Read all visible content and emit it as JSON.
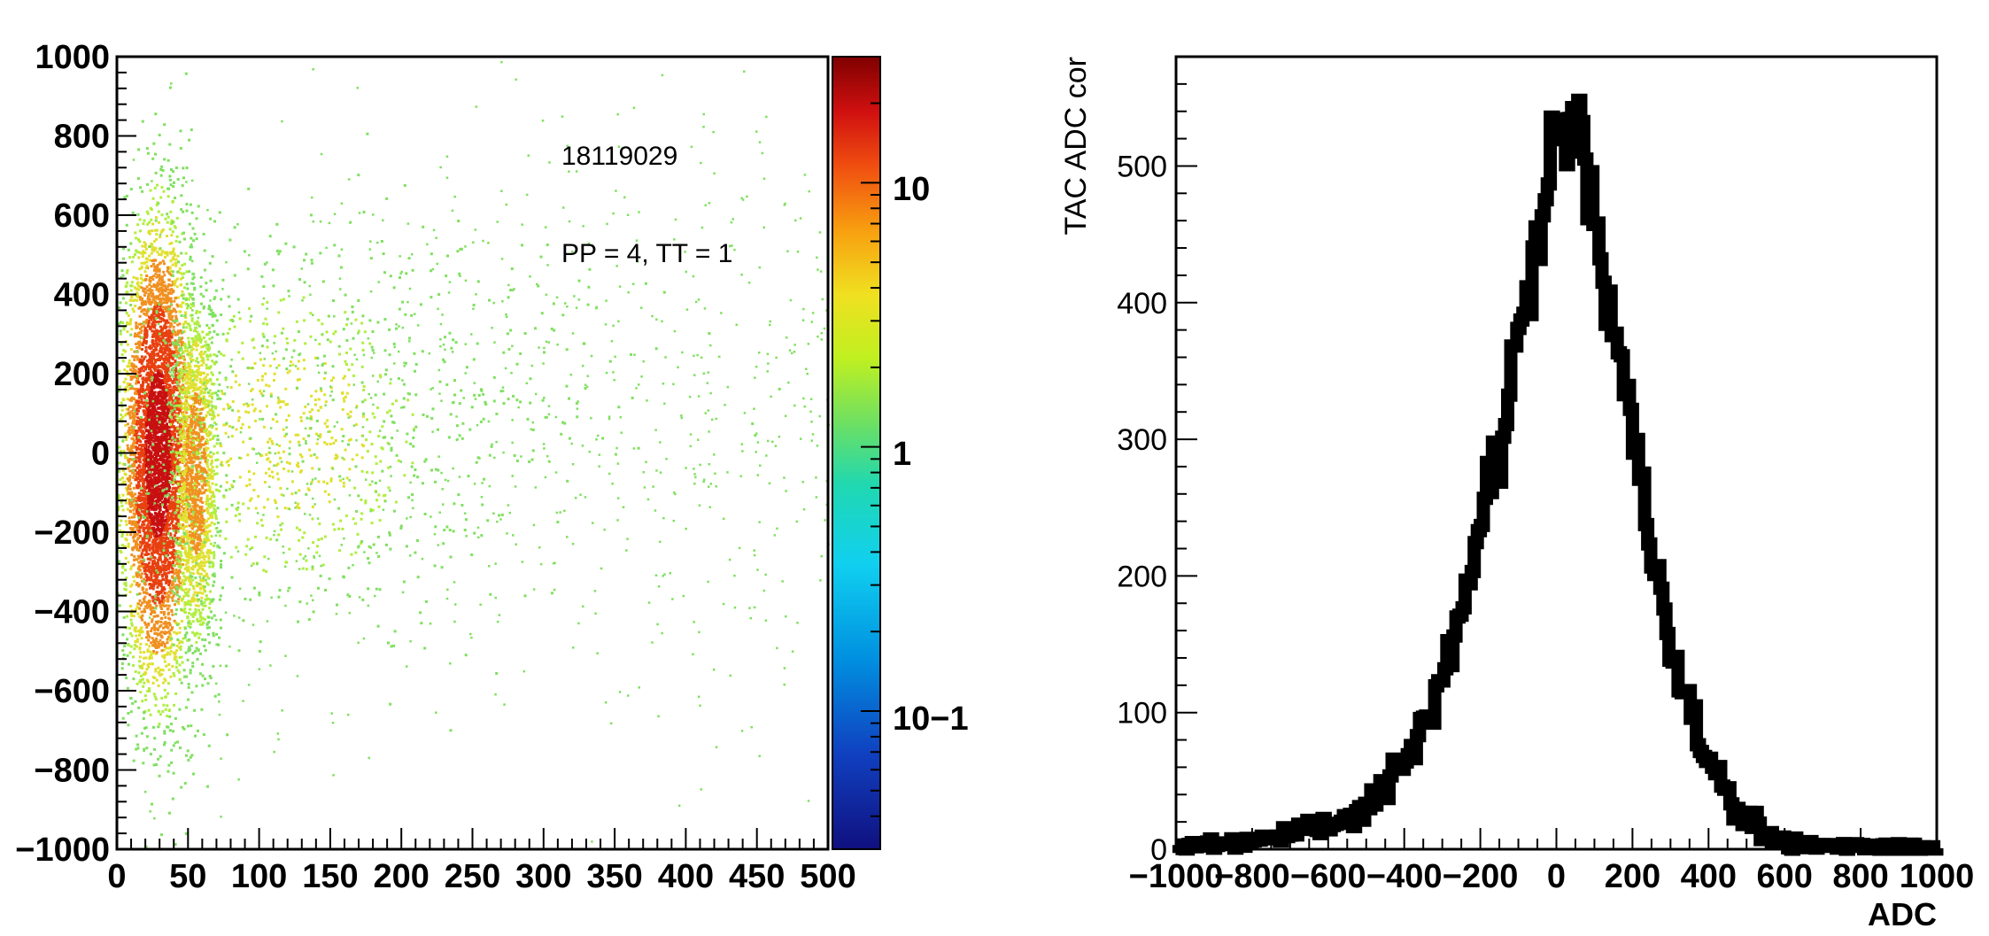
{
  "chart_data": [
    {
      "type": "heatmap",
      "title": "",
      "xlabel": "",
      "ylabel": "",
      "xlim": [
        0,
        500
      ],
      "ylim": [
        -1000,
        1000
      ],
      "x_ticks": [
        "0",
        "50",
        "100",
        "150",
        "200",
        "250",
        "300",
        "350",
        "400",
        "450",
        "500"
      ],
      "y_ticks": [
        "1000",
        "800",
        "600",
        "400",
        "200",
        "0",
        "−200",
        "−400",
        "−600",
        "−800",
        "−1000"
      ],
      "colorbar": {
        "scale": "log",
        "range": [
          0.03,
          30
        ],
        "tick_labels": [
          "10",
          "1",
          "10−1"
        ],
        "tick_values": [
          10,
          1,
          0.1
        ]
      },
      "annotations": [
        "18119029",
        "PP = 4, TT = 1"
      ],
      "regions": [
        {
          "x_center": 28,
          "x_spread": 12,
          "y_center": 0,
          "y_spread": 280,
          "density": 20
        },
        {
          "x_center": 55,
          "x_spread": 8,
          "y_center": -50,
          "y_spread": 230,
          "density": 6
        },
        {
          "x_center": 120,
          "x_spread": 60,
          "y_center": 50,
          "y_spread": 240,
          "density": 3
        },
        {
          "x_center": 220,
          "x_spread": 80,
          "y_center": 150,
          "y_spread": 200,
          "density": 1
        }
      ],
      "grid": false
    },
    {
      "type": "line",
      "title": "",
      "xlabel": "ADC",
      "ylabel": "TAC ADC cor",
      "xlim": [
        -1000,
        1000
      ],
      "ylim": [
        0,
        580
      ],
      "x_ticks": [
        "−1000",
        "−800",
        "−600",
        "−400",
        "−200",
        "0",
        "200",
        "400",
        "600",
        "800",
        "1000"
      ],
      "y_ticks": [
        "500",
        "400",
        "300",
        "200",
        "100",
        "0"
      ],
      "series": [
        {
          "x": [
            -1000,
            -900,
            -800,
            -700,
            -600,
            -500,
            -450,
            -400,
            -350,
            -300,
            -250,
            -200,
            -150,
            -100,
            -50,
            -20,
            0,
            20,
            40,
            60,
            80,
            100,
            150,
            200,
            250,
            300,
            350,
            400,
            450,
            500,
            550,
            600,
            700,
            800,
            900,
            1000
          ],
          "y": [
            3,
            4,
            6,
            10,
            18,
            32,
            45,
            62,
            90,
            125,
            175,
            235,
            305,
            385,
            450,
            500,
            520,
            530,
            535,
            520,
            490,
            455,
            375,
            295,
            215,
            150,
            100,
            62,
            38,
            20,
            10,
            5,
            3,
            2,
            2,
            1
          ]
        }
      ],
      "grid": false
    }
  ]
}
